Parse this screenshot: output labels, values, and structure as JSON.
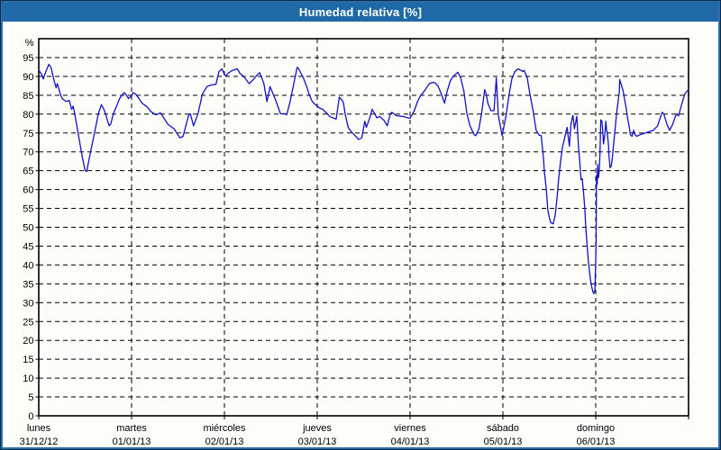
{
  "window": {
    "title": "Humedad relativa [%]"
  },
  "colors": {
    "titlebar_bg": "#1f6aa6",
    "titlebar_text": "#ffffff",
    "frame_border": "#2d6ca5",
    "frame_border_dark": "#0c2b4d",
    "plot_background": "#fdfdfa",
    "line": "#1212c8",
    "grid": "#000000",
    "axis": "#000000",
    "label_text": "#000000"
  },
  "chart_data": {
    "type": "line",
    "title": "Humedad relativa [%]",
    "ylabel": "%",
    "ylim": [
      0,
      100
    ],
    "yticks": [
      0,
      5,
      10,
      15,
      20,
      25,
      30,
      35,
      40,
      45,
      50,
      55,
      60,
      65,
      70,
      75,
      80,
      85,
      90,
      95
    ],
    "grid": "dashed",
    "legend_position": "none",
    "xlim_hours": [
      0,
      168
    ],
    "x_unit": "hours from Monday 00:00",
    "day_labels": [
      {
        "name": "lunes",
        "date": "31/12/12"
      },
      {
        "name": "martes",
        "date": "01/01/13"
      },
      {
        "name": "miércoles",
        "date": "02/01/13"
      },
      {
        "name": "jueves",
        "date": "03/01/13"
      },
      {
        "name": "viernes",
        "date": "04/01/13"
      },
      {
        "name": "sábado",
        "date": "05/01/13"
      },
      {
        "name": "domingo",
        "date": "06/01/13"
      }
    ],
    "series": [
      {
        "name": "Humedad relativa",
        "points": [
          [
            0,
            91.7
          ],
          [
            0.7,
            90.6
          ],
          [
            1.2,
            89.3
          ],
          [
            1.8,
            91.2
          ],
          [
            2.6,
            93.2
          ],
          [
            3.2,
            92.3
          ],
          [
            3.8,
            89.6
          ],
          [
            4.2,
            88.1
          ],
          [
            4.5,
            87.0
          ],
          [
            4.8,
            88.1
          ],
          [
            5.6,
            85.3
          ],
          [
            6.1,
            84.1
          ],
          [
            7.0,
            83.4
          ],
          [
            7.9,
            83.6
          ],
          [
            8.5,
            81.3
          ],
          [
            8.9,
            82.1
          ],
          [
            9.3,
            80.1
          ],
          [
            10.4,
            73.7
          ],
          [
            11.2,
            68.9
          ],
          [
            12.0,
            65.0
          ],
          [
            12.4,
            64.8
          ],
          [
            13.1,
            68.5
          ],
          [
            13.9,
            72.5
          ],
          [
            14.7,
            76.5
          ],
          [
            15.4,
            80.1
          ],
          [
            16.2,
            82.5
          ],
          [
            17.0,
            80.9
          ],
          [
            18.2,
            76.9
          ],
          [
            18.6,
            77.3
          ],
          [
            19.3,
            80.1
          ],
          [
            20.1,
            82.1
          ],
          [
            20.9,
            84.1
          ],
          [
            21.7,
            85.3
          ],
          [
            22.1,
            85.7
          ],
          [
            22.8,
            84.9
          ],
          [
            23.2,
            84.1
          ],
          [
            23.6,
            84.5
          ],
          [
            24.0,
            84.9
          ],
          [
            24.4,
            85.7
          ],
          [
            25.1,
            85.3
          ],
          [
            25.9,
            84.1
          ],
          [
            26.7,
            82.9
          ],
          [
            28.0,
            81.9
          ],
          [
            29.1,
            80.6
          ],
          [
            30.3,
            79.8
          ],
          [
            31.5,
            80.3
          ],
          [
            33.4,
            77.3
          ],
          [
            35.0,
            76.1
          ],
          [
            36.5,
            73.7
          ],
          [
            37.3,
            74.1
          ],
          [
            38.8,
            79.8
          ],
          [
            39.2,
            80.1
          ],
          [
            40.0,
            76.9
          ],
          [
            41.2,
            80.2
          ],
          [
            42.3,
            85.3
          ],
          [
            43.5,
            87.3
          ],
          [
            44.5,
            87.7
          ],
          [
            45.8,
            87.9
          ],
          [
            46.6,
            91.3
          ],
          [
            47.4,
            92.0
          ],
          [
            48.0,
            90.5
          ],
          [
            48.5,
            90.2
          ],
          [
            48.9,
            90.8
          ],
          [
            50.1,
            91.6
          ],
          [
            51.3,
            92.0
          ],
          [
            52.0,
            90.8
          ],
          [
            52.8,
            90.2
          ],
          [
            54.4,
            88.1
          ],
          [
            55.5,
            89.2
          ],
          [
            56.3,
            90.2
          ],
          [
            57.1,
            91.0
          ],
          [
            58.2,
            88.1
          ],
          [
            59.0,
            83.3
          ],
          [
            59.8,
            87.3
          ],
          [
            60.6,
            85.3
          ],
          [
            61.4,
            83.3
          ],
          [
            62.5,
            80.1
          ],
          [
            63.7,
            80.1
          ],
          [
            64.1,
            79.8
          ],
          [
            64.9,
            82.9
          ],
          [
            65.7,
            86.9
          ],
          [
            66.8,
            92.4
          ],
          [
            67.2,
            92.0
          ],
          [
            68.4,
            89.6
          ],
          [
            69.2,
            87.5
          ],
          [
            69.9,
            85.3
          ],
          [
            70.7,
            83.4
          ],
          [
            71.5,
            82.5
          ],
          [
            72.1,
            82.1
          ],
          [
            72.6,
            81.6
          ],
          [
            73.4,
            81.3
          ],
          [
            74.6,
            80.1
          ],
          [
            75.3,
            79.3
          ],
          [
            76.1,
            79.0
          ],
          [
            76.9,
            78.7
          ],
          [
            77.7,
            84.5
          ],
          [
            78.4,
            83.7
          ],
          [
            78.8,
            82.9
          ],
          [
            79.2,
            80.1
          ],
          [
            80.0,
            76.5
          ],
          [
            80.8,
            75.3
          ],
          [
            81.6,
            74.5
          ],
          [
            82.7,
            73.3
          ],
          [
            83.5,
            73.7
          ],
          [
            84.3,
            78.1
          ],
          [
            84.7,
            76.5
          ],
          [
            85.5,
            78.7
          ],
          [
            86.2,
            81.3
          ],
          [
            87.0,
            79.8
          ],
          [
            87.4,
            79.0
          ],
          [
            88.2,
            79.4
          ],
          [
            89.3,
            78.3
          ],
          [
            90.1,
            76.9
          ],
          [
            90.9,
            80.1
          ],
          [
            91.3,
            80.5
          ],
          [
            92.4,
            79.6
          ],
          [
            94.0,
            79.4
          ],
          [
            95.5,
            79.0
          ],
          [
            96.0,
            78.9
          ],
          [
            97.1,
            80.9
          ],
          [
            97.9,
            83.3
          ],
          [
            98.7,
            84.9
          ],
          [
            99.4,
            85.7
          ],
          [
            100.2,
            86.9
          ],
          [
            101.0,
            88.1
          ],
          [
            101.8,
            88.4
          ],
          [
            102.5,
            88.3
          ],
          [
            103.3,
            87.3
          ],
          [
            104.1,
            85.3
          ],
          [
            104.9,
            82.9
          ],
          [
            105.6,
            86.1
          ],
          [
            106.4,
            88.8
          ],
          [
            107.2,
            90.1
          ],
          [
            108.4,
            91.1
          ],
          [
            109.1,
            89.6
          ],
          [
            109.9,
            86.1
          ],
          [
            110.7,
            80.1
          ],
          [
            111.5,
            76.9
          ],
          [
            112.6,
            74.5
          ],
          [
            113.0,
            74.3
          ],
          [
            113.8,
            76.1
          ],
          [
            114.6,
            80.9
          ],
          [
            115.0,
            84.1
          ],
          [
            115.3,
            86.5
          ],
          [
            115.7,
            85.3
          ],
          [
            116.1,
            82.9
          ],
          [
            116.9,
            80.9
          ],
          [
            117.7,
            80.9
          ],
          [
            118.3,
            89.6
          ],
          [
            118.8,
            79.8
          ],
          [
            119.8,
            74.3
          ],
          [
            120.8,
            79.4
          ],
          [
            121.6,
            85.3
          ],
          [
            122.3,
            89.3
          ],
          [
            123.1,
            91.3
          ],
          [
            123.9,
            92.0
          ],
          [
            124.7,
            91.6
          ],
          [
            125.1,
            91.3
          ],
          [
            125.5,
            91.6
          ],
          [
            126.3,
            89.6
          ],
          [
            127.0,
            85.3
          ],
          [
            127.8,
            80.9
          ],
          [
            128.6,
            75.7
          ],
          [
            129.4,
            74.4
          ],
          [
            129.9,
            74.3
          ],
          [
            130.5,
            68.1
          ],
          [
            130.7,
            65.0
          ],
          [
            131.2,
            60.2
          ],
          [
            131.6,
            54.6
          ],
          [
            132.1,
            52.2
          ],
          [
            132.4,
            51.2
          ],
          [
            133.0,
            50.9
          ],
          [
            133.5,
            53.0
          ],
          [
            134.0,
            57.8
          ],
          [
            134.4,
            62.6
          ],
          [
            134.9,
            67.3
          ],
          [
            135.4,
            71.3
          ],
          [
            135.8,
            72.9
          ],
          [
            136.3,
            75.3
          ],
          [
            136.6,
            76.5
          ],
          [
            137.2,
            71.5
          ],
          [
            137.6,
            77.3
          ],
          [
            138.1,
            79.7
          ],
          [
            138.5,
            76.1
          ],
          [
            139.1,
            79.4
          ],
          [
            139.3,
            76.1
          ],
          [
            139.5,
            72.1
          ],
          [
            139.8,
            68.2
          ],
          [
            140.2,
            62.6
          ],
          [
            140.5,
            62.9
          ],
          [
            140.9,
            58.6
          ],
          [
            141.2,
            54.6
          ],
          [
            141.4,
            50.7
          ],
          [
            141.6,
            47.5
          ],
          [
            142.1,
            41.1
          ],
          [
            142.6,
            36.3
          ],
          [
            143.0,
            34.0
          ],
          [
            143.3,
            32.8
          ],
          [
            143.5,
            32.4
          ],
          [
            143.8,
            33.2
          ],
          [
            144.1,
            45.0
          ],
          [
            144.2,
            63.8
          ],
          [
            144.4,
            61.4
          ],
          [
            144.5,
            66.6
          ],
          [
            144.7,
            63.1
          ],
          [
            144.9,
            65.0
          ],
          [
            145.1,
            69.5
          ],
          [
            145.3,
            78.5
          ],
          [
            145.6,
            78.1
          ],
          [
            145.8,
            75.7
          ],
          [
            146.0,
            72.1
          ],
          [
            146.3,
            74.1
          ],
          [
            146.5,
            76.5
          ],
          [
            146.6,
            78.1
          ],
          [
            146.8,
            76.0
          ],
          [
            147.0,
            74.8
          ],
          [
            147.3,
            71.7
          ],
          [
            147.4,
            69.3
          ],
          [
            147.7,
            65.8
          ],
          [
            148.0,
            66.2
          ],
          [
            148.3,
            68.5
          ],
          [
            148.6,
            71.7
          ],
          [
            148.9,
            74.8
          ],
          [
            149.2,
            78.1
          ],
          [
            149.4,
            80.3
          ],
          [
            149.7,
            82.7
          ],
          [
            149.9,
            84.3
          ],
          [
            150.1,
            85.9
          ],
          [
            150.2,
            89.2
          ],
          [
            151.1,
            86.1
          ],
          [
            151.5,
            83.7
          ],
          [
            151.9,
            81.4
          ],
          [
            152.2,
            79.2
          ],
          [
            152.6,
            76.9
          ],
          [
            153.0,
            74.5
          ],
          [
            153.4,
            74.1
          ],
          [
            153.8,
            75.7
          ],
          [
            154.2,
            74.5
          ],
          [
            154.6,
            74.1
          ],
          [
            155.4,
            74.5
          ],
          [
            156.5,
            74.9
          ],
          [
            157.7,
            75.3
          ],
          [
            158.9,
            75.7
          ],
          [
            160.0,
            76.9
          ],
          [
            160.8,
            79.4
          ],
          [
            161.2,
            80.5
          ],
          [
            161.6,
            80.1
          ],
          [
            162.4,
            77.3
          ],
          [
            163.1,
            75.7
          ],
          [
            163.9,
            77.3
          ],
          [
            164.6,
            79.4
          ],
          [
            165.0,
            80.1
          ],
          [
            165.4,
            79.5
          ],
          [
            166.2,
            82.5
          ],
          [
            167.0,
            85.3
          ],
          [
            167.8,
            86.3
          ],
          [
            168.0,
            86.5
          ]
        ]
      }
    ]
  }
}
